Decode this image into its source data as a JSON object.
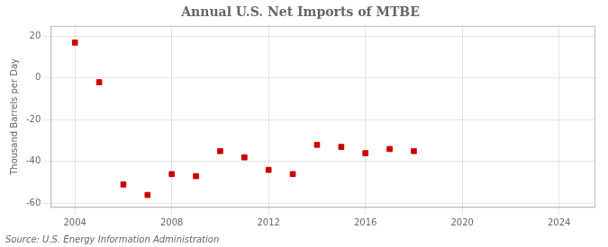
{
  "chart_data": {
    "type": "scatter",
    "title": "Annual U.S. Net Imports of MTBE",
    "y_label": "Thousand Barrels per Day",
    "annotations": [
      "Source: U.S. Energy Information Administration"
    ],
    "x": [
      2004,
      2005,
      2006,
      2007,
      2008,
      2009,
      2010,
      2011,
      2012,
      2013,
      2014,
      2015,
      2016,
      2017,
      2018
    ],
    "values": [
      17.0,
      -2.0,
      -51.0,
      -56.0,
      -46.0,
      -47.0,
      -35.0,
      -38.0,
      -44.0,
      -46.0,
      -32.0,
      -33.0,
      -36.0,
      -34.0,
      -35.0
    ],
    "color": "#cc0000",
    "marker": "square",
    "xlim": [
      2003.0,
      2025.5
    ],
    "ylim": [
      -62,
      25
    ],
    "xticks": [
      2004,
      2008,
      2012,
      2016,
      2020,
      2024
    ],
    "yticks": [
      -60,
      -40,
      -20,
      0,
      20
    ],
    "grid": true
  }
}
